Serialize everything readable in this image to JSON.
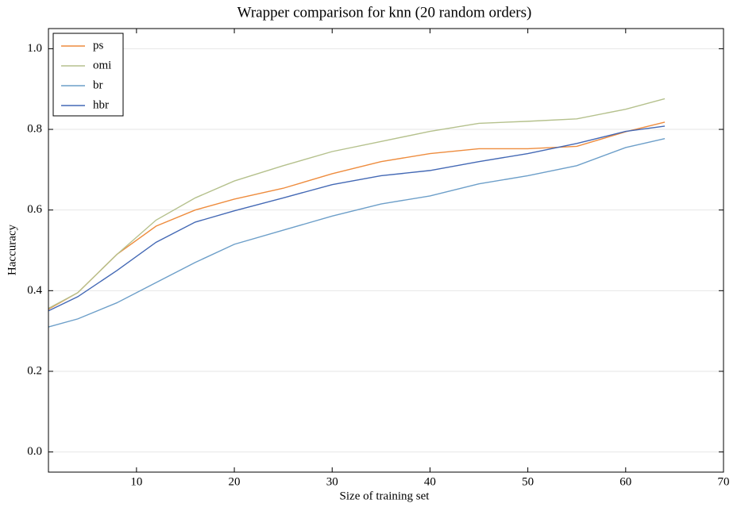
{
  "chart_data": {
    "type": "line",
    "title": "Wrapper comparison for knn (20 random orders)",
    "x_label": "Size of training set",
    "y_label": "Haccuracy",
    "x": [
      1,
      4,
      8,
      12,
      16,
      20,
      25,
      30,
      35,
      40,
      45,
      50,
      55,
      60,
      64
    ],
    "series": [
      {
        "name": "ps",
        "color": "#ee8c3e",
        "values": [
          0.354,
          0.395,
          0.49,
          0.56,
          0.6,
          0.627,
          0.654,
          0.69,
          0.72,
          0.74,
          0.752,
          0.752,
          0.758,
          0.794,
          0.818
        ]
      },
      {
        "name": "omi",
        "color": "#b5c18d",
        "values": [
          0.356,
          0.395,
          0.49,
          0.575,
          0.63,
          0.672,
          0.71,
          0.745,
          0.77,
          0.795,
          0.815,
          0.82,
          0.826,
          0.85,
          0.876
        ]
      },
      {
        "name": "br",
        "color": "#6d9fc9",
        "values": [
          0.31,
          0.33,
          0.37,
          0.42,
          0.47,
          0.515,
          0.55,
          0.585,
          0.615,
          0.635,
          0.665,
          0.685,
          0.71,
          0.755,
          0.777
        ]
      },
      {
        "name": "hbr",
        "color": "#4469b5",
        "values": [
          0.35,
          0.385,
          0.45,
          0.52,
          0.57,
          0.598,
          0.63,
          0.663,
          0.685,
          0.698,
          0.72,
          0.74,
          0.765,
          0.795,
          0.808
        ]
      }
    ],
    "xlim": [
      1,
      70
    ],
    "xticks": [
      10,
      20,
      30,
      40,
      50,
      60,
      70
    ],
    "ylim": [
      -0.05,
      1.05
    ],
    "yticks": [
      {
        "value": 0,
        "label": "0.0"
      },
      0.2,
      0.4,
      0.6,
      0.8,
      {
        "value": 1,
        "label": "1.0"
      }
    ],
    "grid": true,
    "legend": "upper-left"
  }
}
